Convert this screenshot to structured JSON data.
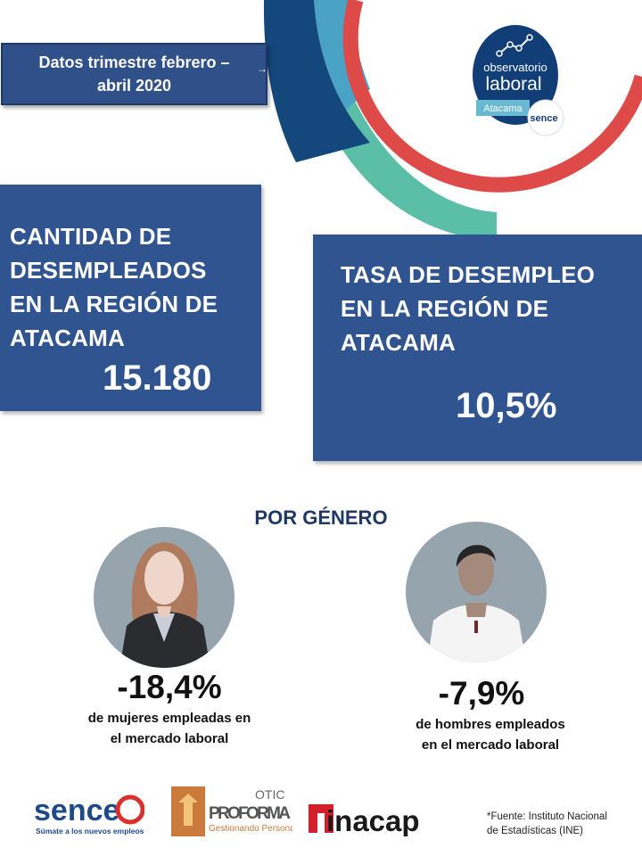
{
  "date_box": {
    "line1": "Datos trimestre febrero –",
    "line2": "abril 2020"
  },
  "logo": {
    "line1": "observatorio",
    "line2": "laboral",
    "region": "Atacama",
    "brand": "sence"
  },
  "unemployed_count": {
    "title": [
      "CANTIDAD DE",
      "DESEMPLEADOS",
      "EN LA REGIÓN DE",
      "ATACAMA"
    ],
    "value": "15.180"
  },
  "unemployment_rate": {
    "title": [
      "TASA DE DESEMPLEO",
      "EN LA REGIÓN DE",
      "ATACAMA"
    ],
    "value": "10,5%"
  },
  "gender": {
    "title": "POR GÉNERO",
    "women": {
      "value": "-18,4%",
      "desc_line1": "de mujeres empleadas en",
      "desc_line2": "el mercado laboral"
    },
    "men": {
      "value": "-7,9%",
      "desc_line1": "de hombres empleados",
      "desc_line2": "en el mercado laboral"
    }
  },
  "footer": {
    "sence": {
      "name": "sence",
      "tagline": "Súmate a los nuevos empleos"
    },
    "proforma": {
      "top": "OTIC",
      "name": "PROFORMA",
      "tagline": "Gestionando Personas"
    },
    "inacap": {
      "name": "inacap"
    },
    "source_line1": "*Fuente:  Instituto Nacional",
    "source_line2": "de Estadísticas (INE)"
  },
  "colors": {
    "navy": "#1f3864",
    "box_blue": "#305490",
    "arc_dark": "#14487d",
    "arc_light": "#4aa3c5",
    "arc_teal": "#5bbfa8",
    "arc_red": "#dd4a48",
    "avatar_bg": "#96a4ae"
  }
}
